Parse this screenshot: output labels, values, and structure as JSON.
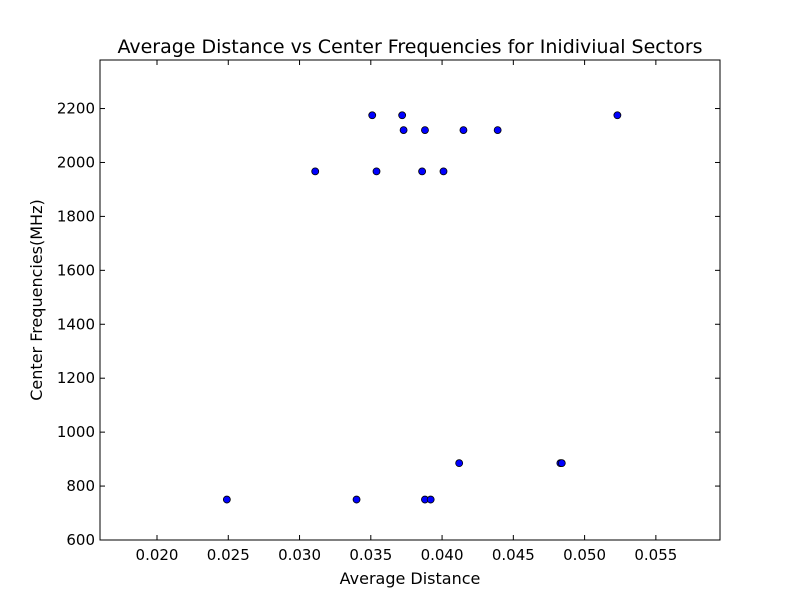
{
  "chart_data": {
    "type": "scatter",
    "title": "Average Distance vs Center Frequencies for Inidiviual Sectors",
    "xlabel": "Average Distance",
    "ylabel": "Center Frequencies(MHz)",
    "xlim": [
      0.016,
      0.0595
    ],
    "ylim": [
      600,
      2380
    ],
    "xticks": [
      0.02,
      0.025,
      0.03,
      0.035,
      0.04,
      0.045,
      0.05,
      0.055
    ],
    "xtick_labels": [
      "0.020",
      "0.025",
      "0.030",
      "0.035",
      "0.040",
      "0.045",
      "0.050",
      "0.055"
    ],
    "yticks": [
      600,
      800,
      1000,
      1200,
      1400,
      1600,
      1800,
      2000,
      2200
    ],
    "ytick_labels": [
      "600",
      "800",
      "1000",
      "1200",
      "1400",
      "1600",
      "1800",
      "2000",
      "2200"
    ],
    "grid": false,
    "marker_color": "#0000ff",
    "marker_edge": "#000000",
    "points": [
      {
        "x": 0.0249,
        "y": 750
      },
      {
        "x": 0.034,
        "y": 750
      },
      {
        "x": 0.0388,
        "y": 750
      },
      {
        "x": 0.0392,
        "y": 750
      },
      {
        "x": 0.0412,
        "y": 885
      },
      {
        "x": 0.0483,
        "y": 885
      },
      {
        "x": 0.0484,
        "y": 885
      },
      {
        "x": 0.0311,
        "y": 1967
      },
      {
        "x": 0.0354,
        "y": 1967
      },
      {
        "x": 0.0386,
        "y": 1967
      },
      {
        "x": 0.0401,
        "y": 1967
      },
      {
        "x": 0.0373,
        "y": 2120
      },
      {
        "x": 0.0388,
        "y": 2120
      },
      {
        "x": 0.0415,
        "y": 2120
      },
      {
        "x": 0.0439,
        "y": 2120
      },
      {
        "x": 0.0351,
        "y": 2175
      },
      {
        "x": 0.0372,
        "y": 2175
      },
      {
        "x": 0.0523,
        "y": 2175
      }
    ]
  }
}
